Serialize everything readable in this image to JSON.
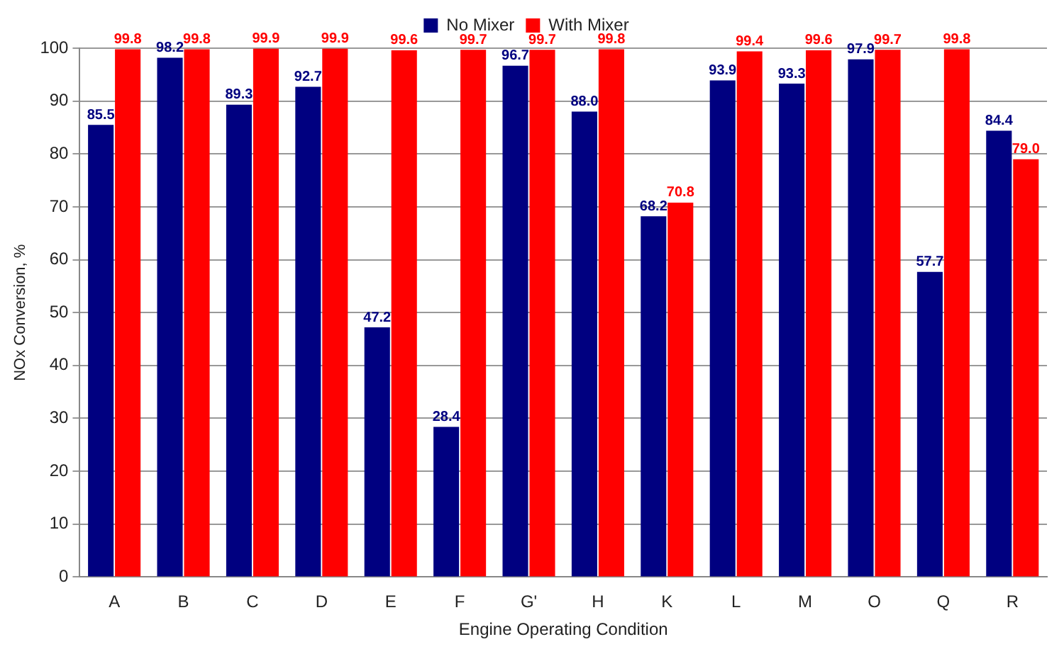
{
  "chart_data": {
    "type": "bar",
    "xlabel": "Engine Operating Condition",
    "ylabel": "NOx Conversion, %",
    "categories": [
      "A",
      "B",
      "C",
      "D",
      "E",
      "F",
      "G'",
      "H",
      "K",
      "L",
      "M",
      "O",
      "Q",
      "R"
    ],
    "series": [
      {
        "name": "No Mixer",
        "color": "#000080",
        "values": [
          85.5,
          98.2,
          89.3,
          92.7,
          47.2,
          28.4,
          96.7,
          88.0,
          68.2,
          93.9,
          93.3,
          97.9,
          57.7,
          84.4
        ],
        "value_labels": [
          "85.5",
          "98.2",
          "89.3",
          "92.7",
          "47.2",
          "28.4",
          "96.7",
          "88.0",
          "68.2",
          "93.9",
          "93.3",
          "97.9",
          "57.7",
          "84.4"
        ]
      },
      {
        "name": "With Mixer",
        "color": "#ff0000",
        "values": [
          99.8,
          99.8,
          99.9,
          99.9,
          99.6,
          99.7,
          99.7,
          99.8,
          70.8,
          99.4,
          99.6,
          99.7,
          99.8,
          79.0
        ],
        "value_labels": [
          "99.8",
          "99.8",
          "99.9",
          "99.9",
          "99.6",
          "99.7",
          "99.7",
          "99.8",
          "70.8",
          "99.4",
          "99.6",
          "99.7",
          "99.8",
          "79.0"
        ]
      }
    ],
    "ylim": [
      0,
      100
    ],
    "yticks": [
      0,
      10,
      20,
      30,
      40,
      50,
      60,
      70,
      80,
      90,
      100
    ],
    "grid": "y",
    "legend": "top"
  }
}
